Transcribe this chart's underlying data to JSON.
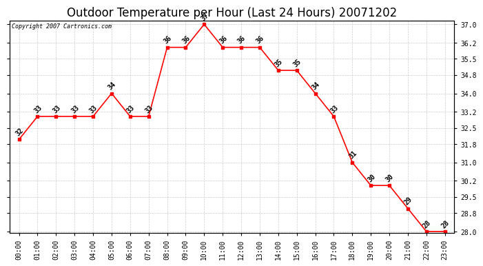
{
  "title": "Outdoor Temperature per Hour (Last 24 Hours) 20071202",
  "copyright_text": "Copyright 2007 Cartronics.com",
  "hours": [
    "00:00",
    "01:00",
    "02:00",
    "03:00",
    "04:00",
    "05:00",
    "06:00",
    "07:00",
    "08:00",
    "09:00",
    "10:00",
    "11:00",
    "12:00",
    "13:00",
    "14:00",
    "15:00",
    "16:00",
    "17:00",
    "18:00",
    "19:00",
    "20:00",
    "21:00",
    "22:00",
    "23:00"
  ],
  "temperatures": [
    32,
    33,
    33,
    33,
    33,
    34,
    33,
    33,
    36,
    36,
    37,
    36,
    36,
    36,
    35,
    35,
    34,
    33,
    31,
    30,
    30,
    29,
    28,
    28
  ],
  "line_color": "#FF0000",
  "marker_color": "#FF0000",
  "bg_color": "#FFFFFF",
  "grid_color": "#CCCCCC",
  "ylim_min": 28.0,
  "ylim_max": 37.0,
  "yticks": [
    28.0,
    28.8,
    29.5,
    30.2,
    31.0,
    31.8,
    32.5,
    33.2,
    34.0,
    34.8,
    35.5,
    36.2,
    37.0
  ],
  "title_fontsize": 12,
  "label_fontsize": 7,
  "tick_fontsize": 7,
  "annot_fontsize": 7
}
